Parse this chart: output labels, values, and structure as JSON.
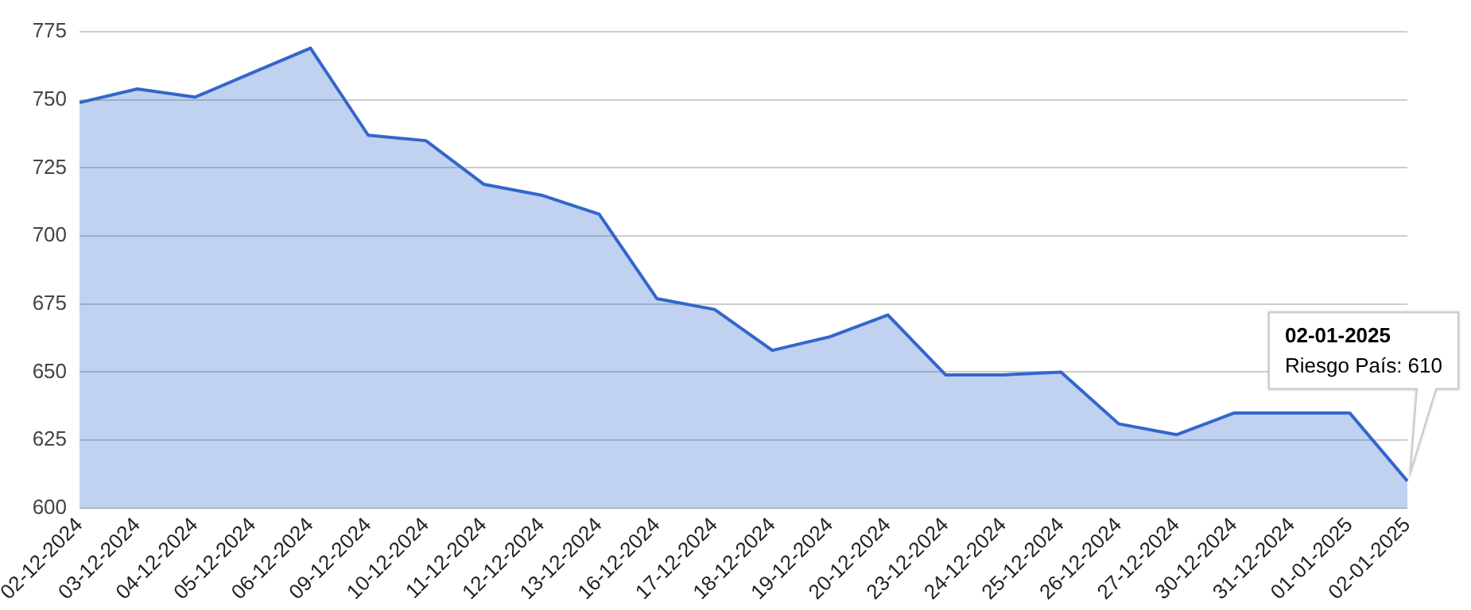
{
  "chart_data": {
    "type": "area",
    "categories": [
      "02-12-2024",
      "03-12-2024",
      "04-12-2024",
      "05-12-2024",
      "06-12-2024",
      "09-12-2024",
      "10-12-2024",
      "11-12-2024",
      "12-12-2024",
      "13-12-2024",
      "16-12-2024",
      "17-12-2024",
      "18-12-2024",
      "19-12-2024",
      "20-12-2024",
      "23-12-2024",
      "24-12-2024",
      "25-12-2024",
      "26-12-2024",
      "27-12-2024",
      "30-12-2024",
      "31-12-2024",
      "01-01-2025",
      "02-01-2025"
    ],
    "series": [
      {
        "color": "#3366cc",
        "values": [
          749,
          754,
          751,
          760,
          769,
          737,
          735,
          719,
          715,
          708,
          677,
          673,
          658,
          663,
          671,
          649,
          649,
          650,
          631,
          627,
          635,
          635,
          635,
          610
        ]
      }
    ],
    "ylim": [
      600,
      775
    ],
    "yticks": [
      600,
      625,
      650,
      675,
      700,
      725,
      750,
      775
    ],
    "grid": "y",
    "legend": false,
    "annotations": [
      "02-01-2025",
      "Riesgo País: 610"
    ]
  }
}
